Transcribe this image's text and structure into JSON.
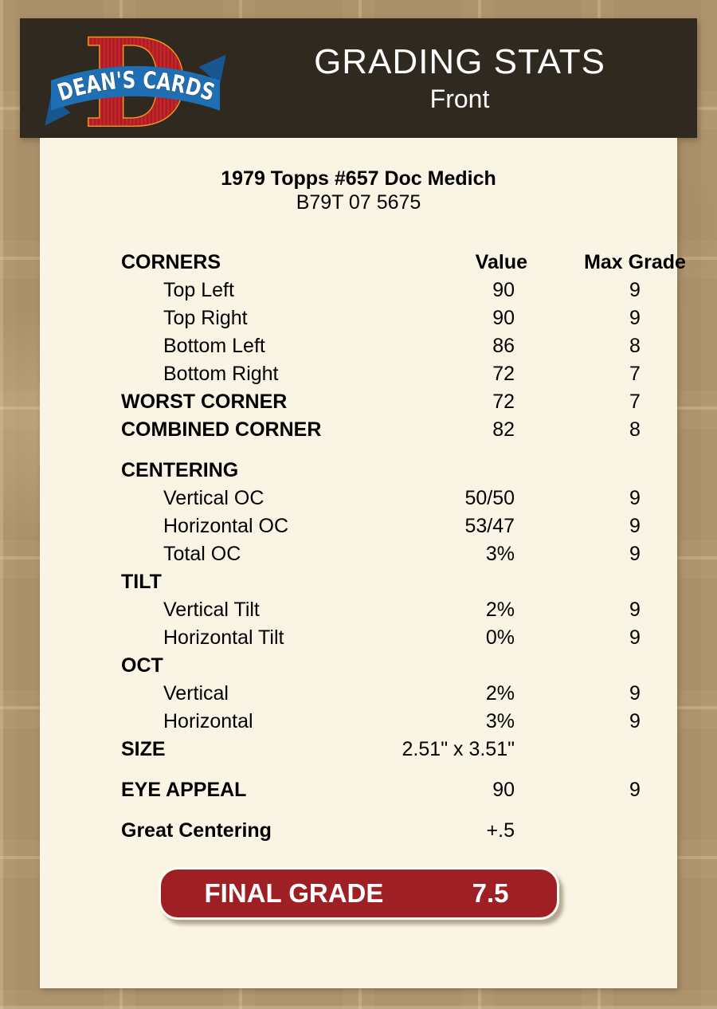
{
  "header": {
    "logo": {
      "monogram": "D",
      "banner_text": "DEAN'S CARDS"
    },
    "title": "GRADING STATS",
    "subtitle": "Front"
  },
  "card": {
    "title": "1979 Topps #657 Doc Medich",
    "serial": "B79T 07 5675"
  },
  "table": {
    "header": {
      "label": "CORNERS",
      "value": "Value",
      "max": "Max Grade"
    },
    "rows": [
      {
        "label": "Top Left",
        "value": "90",
        "max": "9",
        "indent": true
      },
      {
        "label": "Top Right",
        "value": "90",
        "max": "9",
        "indent": true
      },
      {
        "label": "Bottom Left",
        "value": "86",
        "max": "8",
        "indent": true
      },
      {
        "label": "Bottom Right",
        "value": "72",
        "max": "7",
        "indent": true
      },
      {
        "label": "WORST CORNER",
        "value": "72",
        "max": "7",
        "bold": true
      },
      {
        "label": "COMBINED CORNER",
        "value": "82",
        "max": "8",
        "bold": true
      },
      {
        "spacer": true
      },
      {
        "label": "CENTERING",
        "bold": true
      },
      {
        "label": "Vertical OC",
        "value": "50/50",
        "max": "9",
        "indent": true
      },
      {
        "label": "Horizontal OC",
        "value": "53/47",
        "max": "9",
        "indent": true
      },
      {
        "label": "Total OC",
        "value": "3%",
        "max": "9",
        "indent": true
      },
      {
        "label": "TILT",
        "bold": true
      },
      {
        "label": "Vertical Tilt",
        "value": "2%",
        "max": "9",
        "indent": true
      },
      {
        "label": "Horizontal Tilt",
        "value": "0%",
        "max": "9",
        "indent": true
      },
      {
        "label": "OCT",
        "bold": true
      },
      {
        "label": "Vertical",
        "value": "2%",
        "max": "9",
        "indent": true
      },
      {
        "label": "Horizontal",
        "value": "3%",
        "max": "9",
        "indent": true
      },
      {
        "label": "SIZE",
        "value": "2.51\" x 3.51\"",
        "bold": true
      },
      {
        "spacer": true
      },
      {
        "label": "EYE APPEAL",
        "value": "90",
        "max": "9",
        "bold": true
      },
      {
        "spacer": true
      },
      {
        "label": "Great Centering",
        "value": "+.5",
        "bold": true
      }
    ]
  },
  "final_grade": {
    "label": "FINAL GRADE",
    "value": "7.5"
  },
  "colors": {
    "accent_red": "#9e2024",
    "header_brown": "#2f2920",
    "panel_cream": "#faf4e4",
    "background_tan": "#b29871",
    "logo_red": "#c4242b",
    "logo_red_dark": "#a31d23",
    "logo_blue": "#1e6fb4",
    "logo_blue_dark": "#17568f",
    "logo_gold": "#f0961e",
    "logo_text_white": "#ffffff"
  }
}
